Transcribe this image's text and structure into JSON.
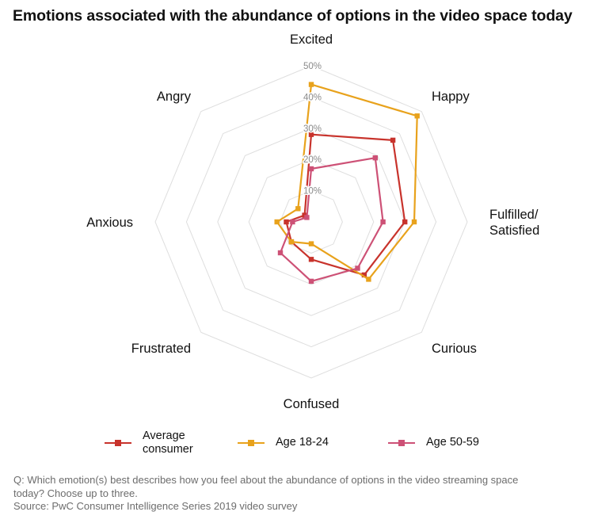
{
  "chart_data": {
    "type": "radar",
    "title": "Emotions associated with the abundance of options in the video space today",
    "axes": [
      "Excited",
      "Happy",
      "Fulfilled/\nSatisfied",
      "Curious",
      "Confused",
      "Frustrated",
      "Anxious",
      "Angry"
    ],
    "ticks": [
      10,
      20,
      30,
      40,
      50
    ],
    "tick_labels": [
      "10%",
      "20%",
      "30%",
      "40%",
      "50%"
    ],
    "rlim": [
      0,
      50
    ],
    "grid": true,
    "legend_position": "bottom",
    "series": [
      {
        "name": "Average\nconsumer",
        "color": "#c8332c",
        "values": [
          28,
          37,
          30,
          24,
          12,
          9,
          8,
          3
        ]
      },
      {
        "name": "Age 18-24",
        "color": "#e8a21c",
        "values": [
          44,
          48,
          33,
          26,
          7,
          9,
          11,
          6
        ]
      },
      {
        "name": "Age 50-59",
        "color": "#cd5176",
        "values": [
          17,
          29,
          23,
          21,
          19,
          14,
          6,
          2
        ]
      }
    ],
    "source_note": [
      "Q: Which emotion(s) best describes how you feel about the abundance of options in the video streaming space",
      "today? Choose up to three.",
      "Source: PwC Consumer Intelligence Series 2019 video survey"
    ]
  }
}
